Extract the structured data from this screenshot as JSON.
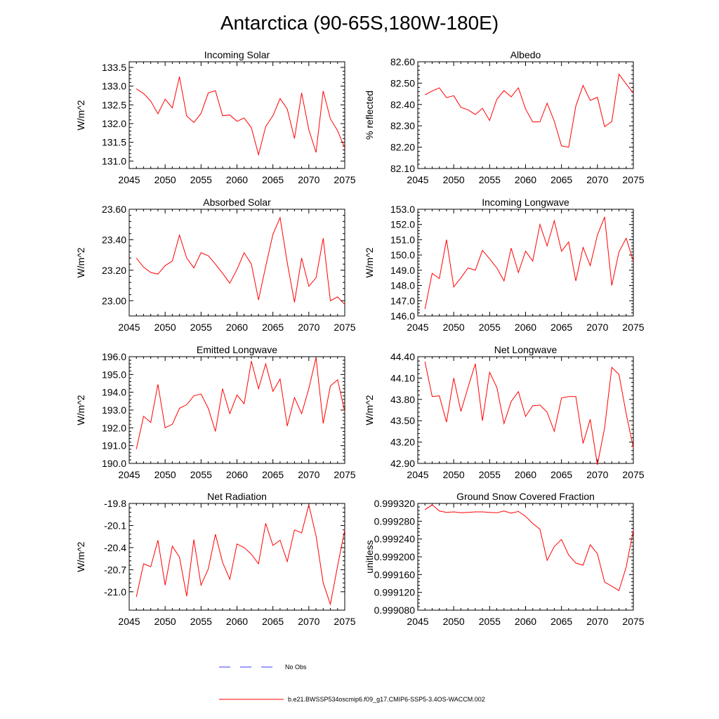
{
  "title": "Antarctica (90-65S,180W-180E)",
  "legend": {
    "obs_label": "No Obs",
    "model_label": "b.e21.BWSSP534oscmip6.f09_g17.CMIP6-SSP5-3.4OS-WACCM.002",
    "obs_color": "#3b3bff",
    "model_color": "#ff0000"
  },
  "chart_data": [
    {
      "type": "line",
      "title": "Incoming Solar",
      "ylabel": "W/m^2",
      "xlim": [
        2045,
        2075
      ],
      "xticks": [
        2045,
        2050,
        2055,
        2060,
        2065,
        2070,
        2075
      ],
      "ylim": [
        130.8,
        133.65
      ],
      "yticks": [
        131.0,
        131.5,
        132.0,
        132.5,
        133.0,
        133.5
      ],
      "yticklabels": [
        "131.0",
        "131.5",
        "132.0",
        "132.5",
        "133.0",
        "133.5"
      ],
      "x": [
        2046,
        2047,
        2048,
        2049,
        2050,
        2051,
        2052,
        2053,
        2054,
        2055,
        2056,
        2057,
        2058,
        2059,
        2060,
        2061,
        2062,
        2063,
        2064,
        2065,
        2066,
        2067,
        2068,
        2069,
        2070,
        2071,
        2072,
        2073,
        2074,
        2075
      ],
      "values": [
        132.93,
        132.8,
        132.6,
        132.26,
        132.65,
        132.42,
        133.25,
        132.2,
        132.03,
        132.27,
        132.82,
        132.88,
        132.21,
        132.23,
        132.06,
        132.15,
        131.89,
        131.17,
        131.92,
        132.21,
        132.67,
        132.39,
        131.6,
        132.82,
        131.84,
        131.23,
        132.87,
        132.13,
        131.81,
        131.35
      ]
    },
    {
      "type": "line",
      "title": "Albedo",
      "ylabel": "% reflected",
      "xlim": [
        2045,
        2075
      ],
      "xticks": [
        2045,
        2050,
        2055,
        2060,
        2065,
        2070,
        2075
      ],
      "ylim": [
        82.1,
        82.6
      ],
      "yticks": [
        82.1,
        82.2,
        82.3,
        82.4,
        82.5,
        82.6
      ],
      "yticklabels": [
        "82.10",
        "82.20",
        "82.30",
        "82.40",
        "82.50",
        "82.60"
      ],
      "x": [
        2046,
        2047,
        2048,
        2049,
        2050,
        2051,
        2052,
        2053,
        2054,
        2055,
        2056,
        2057,
        2058,
        2059,
        2060,
        2061,
        2062,
        2063,
        2064,
        2065,
        2066,
        2067,
        2068,
        2069,
        2070,
        2071,
        2072,
        2073,
        2074,
        2075
      ],
      "values": [
        82.445,
        82.463,
        82.478,
        82.432,
        82.441,
        82.387,
        82.375,
        82.353,
        82.382,
        82.325,
        82.424,
        82.465,
        82.436,
        82.478,
        82.379,
        82.318,
        82.319,
        82.406,
        82.322,
        82.206,
        82.2,
        82.393,
        82.489,
        82.419,
        82.434,
        82.296,
        82.32,
        82.542,
        82.496,
        82.453
      ]
    },
    {
      "type": "line",
      "title": "Absorbed Solar",
      "ylabel": "W/m^2",
      "xlim": [
        2045,
        2075
      ],
      "xticks": [
        2045,
        2050,
        2055,
        2060,
        2065,
        2070,
        2075
      ],
      "ylim": [
        22.9,
        23.6
      ],
      "yticks": [
        23.0,
        23.2,
        23.4,
        23.6
      ],
      "yticklabels": [
        "23.00",
        "23.20",
        "23.40",
        "23.60"
      ],
      "x": [
        2046,
        2047,
        2048,
        2049,
        2050,
        2051,
        2052,
        2053,
        2054,
        2055,
        2056,
        2057,
        2058,
        2059,
        2060,
        2061,
        2062,
        2063,
        2064,
        2065,
        2066,
        2067,
        2068,
        2069,
        2070,
        2071,
        2072,
        2073,
        2074,
        2075
      ],
      "values": [
        23.28,
        23.22,
        23.185,
        23.175,
        23.23,
        23.26,
        23.43,
        23.28,
        23.215,
        23.315,
        23.295,
        23.24,
        23.18,
        23.115,
        23.205,
        23.315,
        23.24,
        23.005,
        23.225,
        23.435,
        23.545,
        23.25,
        22.99,
        23.28,
        23.095,
        23.15,
        23.41,
        23.0,
        23.025,
        22.975
      ]
    },
    {
      "type": "line",
      "title": "Incoming Longwave",
      "ylabel": "W/m^2",
      "xlim": [
        2045,
        2075
      ],
      "xticks": [
        2045,
        2050,
        2055,
        2060,
        2065,
        2070,
        2075
      ],
      "ylim": [
        146.0,
        153.0
      ],
      "yticks": [
        146,
        147,
        148,
        149,
        150,
        151,
        152,
        153
      ],
      "yticklabels": [
        "146.0",
        "147.0",
        "148.0",
        "149.0",
        "150.0",
        "151.0",
        "152.0",
        "153.0"
      ],
      "x": [
        2046,
        2047,
        2048,
        2049,
        2050,
        2051,
        2052,
        2053,
        2054,
        2055,
        2056,
        2057,
        2058,
        2059,
        2060,
        2061,
        2062,
        2063,
        2064,
        2065,
        2066,
        2067,
        2068,
        2069,
        2070,
        2071,
        2072,
        2073,
        2074,
        2075
      ],
      "values": [
        146.45,
        148.8,
        148.45,
        151.0,
        147.9,
        148.5,
        149.15,
        149.0,
        150.3,
        149.75,
        149.15,
        148.3,
        150.45,
        148.85,
        150.25,
        149.6,
        152.0,
        150.6,
        152.25,
        150.25,
        150.85,
        148.3,
        150.5,
        149.3,
        151.3,
        152.5,
        148.0,
        150.2,
        151.1,
        149.6
      ]
    },
    {
      "type": "line",
      "title": "Emitted Longwave",
      "ylabel": "W/m^2",
      "xlim": [
        2045,
        2075
      ],
      "xticks": [
        2045,
        2050,
        2055,
        2060,
        2065,
        2070,
        2075
      ],
      "ylim": [
        190.0,
        196.0
      ],
      "yticks": [
        190,
        191,
        192,
        193,
        194,
        195,
        196
      ],
      "yticklabels": [
        "190.0",
        "191.0",
        "192.0",
        "193.0",
        "194.0",
        "195.0",
        "196.0"
      ],
      "x": [
        2046,
        2047,
        2048,
        2049,
        2050,
        2051,
        2052,
        2053,
        2054,
        2055,
        2056,
        2057,
        2058,
        2059,
        2060,
        2061,
        2062,
        2063,
        2064,
        2065,
        2066,
        2067,
        2068,
        2069,
        2070,
        2071,
        2072,
        2073,
        2074,
        2075
      ],
      "values": [
        190.8,
        192.65,
        192.3,
        194.45,
        192.0,
        192.2,
        193.1,
        193.3,
        193.8,
        193.9,
        193.1,
        191.8,
        194.2,
        192.8,
        193.85,
        193.35,
        195.75,
        194.2,
        195.6,
        194.05,
        194.75,
        192.1,
        193.7,
        192.8,
        194.2,
        195.95,
        192.25,
        194.35,
        194.7,
        192.9
      ]
    },
    {
      "type": "line",
      "title": "Net Longwave",
      "ylabel": "W/m^2",
      "xlim": [
        2045,
        2075
      ],
      "xticks": [
        2045,
        2050,
        2055,
        2060,
        2065,
        2070,
        2075
      ],
      "ylim": [
        42.9,
        44.4
      ],
      "yticks": [
        42.9,
        43.2,
        43.5,
        43.8,
        44.1,
        44.4
      ],
      "yticklabels": [
        "42.90",
        "43.20",
        "43.50",
        "43.80",
        "44.10",
        "44.40"
      ],
      "x": [
        2046,
        2047,
        2048,
        2049,
        2050,
        2051,
        2052,
        2053,
        2054,
        2055,
        2056,
        2057,
        2058,
        2059,
        2060,
        2061,
        2062,
        2063,
        2064,
        2065,
        2066,
        2067,
        2068,
        2069,
        2070,
        2071,
        2072,
        2073,
        2074,
        2075
      ],
      "values": [
        44.33,
        43.84,
        43.85,
        43.48,
        44.1,
        43.63,
        43.97,
        44.3,
        43.5,
        44.18,
        43.97,
        43.46,
        43.77,
        43.91,
        43.56,
        43.71,
        43.72,
        43.62,
        43.35,
        43.82,
        43.84,
        43.84,
        43.18,
        43.52,
        42.88,
        43.4,
        44.25,
        44.15,
        43.6,
        43.12
      ]
    },
    {
      "type": "line",
      "title": "Net Radiation",
      "ylabel": "W/m^2",
      "xlim": [
        2045,
        2075
      ],
      "xticks": [
        2045,
        2050,
        2055,
        2060,
        2065,
        2070,
        2075
      ],
      "ylim": [
        -21.25,
        -19.8
      ],
      "yticks": [
        -21.0,
        -20.7,
        -20.4,
        -20.1,
        -19.8
      ],
      "yticklabels": [
        "-21.0",
        "-20.7",
        "-20.4",
        "-20.1",
        "-19.8"
      ],
      "x": [
        2046,
        2047,
        2048,
        2049,
        2050,
        2051,
        2052,
        2053,
        2054,
        2055,
        2056,
        2057,
        2058,
        2059,
        2060,
        2061,
        2062,
        2063,
        2064,
        2065,
        2066,
        2067,
        2068,
        2069,
        2070,
        2071,
        2072,
        2073,
        2074,
        2075
      ],
      "values": [
        -21.07,
        -20.62,
        -20.66,
        -20.3,
        -20.91,
        -20.38,
        -20.53,
        -21.06,
        -20.29,
        -20.91,
        -20.69,
        -20.22,
        -20.6,
        -20.83,
        -20.35,
        -20.4,
        -20.49,
        -20.62,
        -20.07,
        -20.37,
        -20.3,
        -20.59,
        -20.16,
        -20.2,
        -19.82,
        -20.24,
        -20.88,
        -21.17,
        -20.65,
        -20.16
      ]
    },
    {
      "type": "line",
      "title": "Ground Snow Covered Fraction",
      "ylabel": "unitless",
      "xlim": [
        2045,
        2075
      ],
      "xticks": [
        2045,
        2050,
        2055,
        2060,
        2065,
        2070,
        2075
      ],
      "ylim": [
        0.99908,
        0.99932
      ],
      "yticks": [
        0.99908,
        0.99912,
        0.99916,
        0.9992,
        0.99924,
        0.99928,
        0.99932
      ],
      "yticklabels": [
        "0.999080",
        "0.999120",
        "0.999160",
        "0.999200",
        "0.999240",
        "0.999280",
        "0.999320"
      ],
      "x": [
        2046,
        2047,
        2048,
        2049,
        2050,
        2051,
        2052,
        2053,
        2054,
        2055,
        2056,
        2057,
        2058,
        2059,
        2060,
        2061,
        2062,
        2063,
        2064,
        2065,
        2066,
        2067,
        2068,
        2069,
        2070,
        2071,
        2072,
        2073,
        2074,
        2075
      ],
      "values": [
        0.999306,
        0.999317,
        0.999303,
        0.9993,
        0.999301,
        0.999299,
        0.9993,
        0.999301,
        0.999301,
        0.9993,
        0.999299,
        0.999303,
        0.999298,
        0.999302,
        0.999291,
        0.999275,
        0.999262,
        0.999192,
        0.999223,
        0.999239,
        0.999204,
        0.999186,
        0.999181,
        0.999227,
        0.999207,
        0.999143,
        0.999134,
        0.999124,
        0.999177,
        0.99926
      ]
    }
  ]
}
